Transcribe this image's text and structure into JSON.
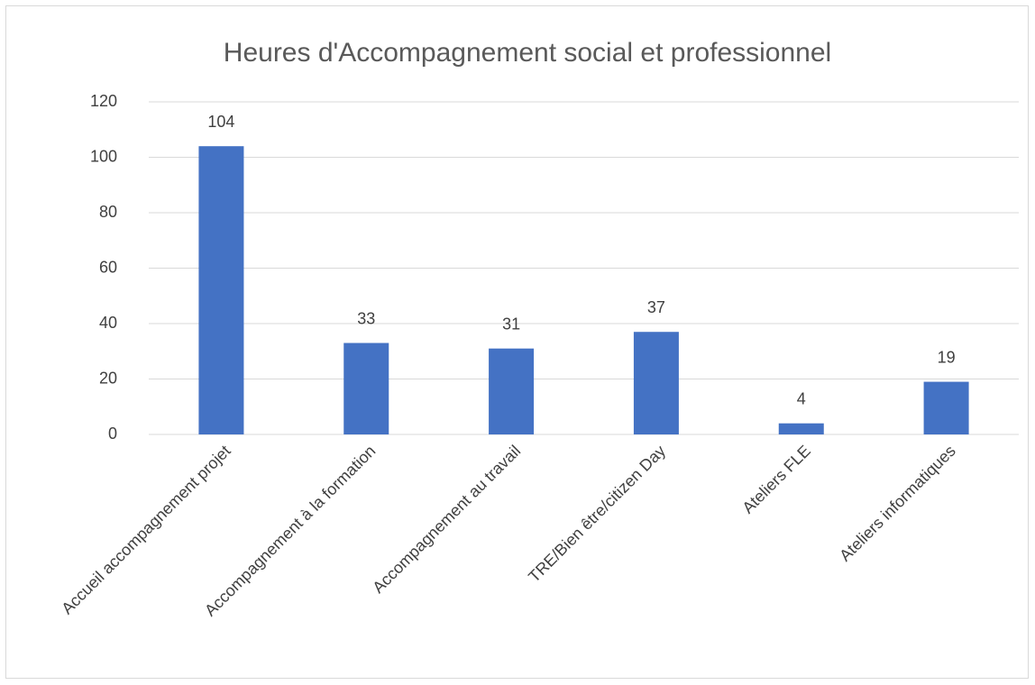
{
  "chart_data": {
    "type": "bar",
    "title": "Heures d'Accompagnement social et professionnel",
    "categories": [
      "Accueil accompagnement projet",
      "Accompagnement à la formation",
      "Accompagnement au travail",
      "TRE/Bien être/citizen Day",
      "Ateliers FLE",
      "Ateliers informatiques"
    ],
    "values": [
      104,
      33,
      31,
      37,
      4,
      19
    ],
    "color": "#4472c4",
    "ylim": [
      0,
      120
    ],
    "yticks": [
      0,
      20,
      40,
      60,
      80,
      100,
      120
    ],
    "grid": true,
    "data_labels": true
  }
}
